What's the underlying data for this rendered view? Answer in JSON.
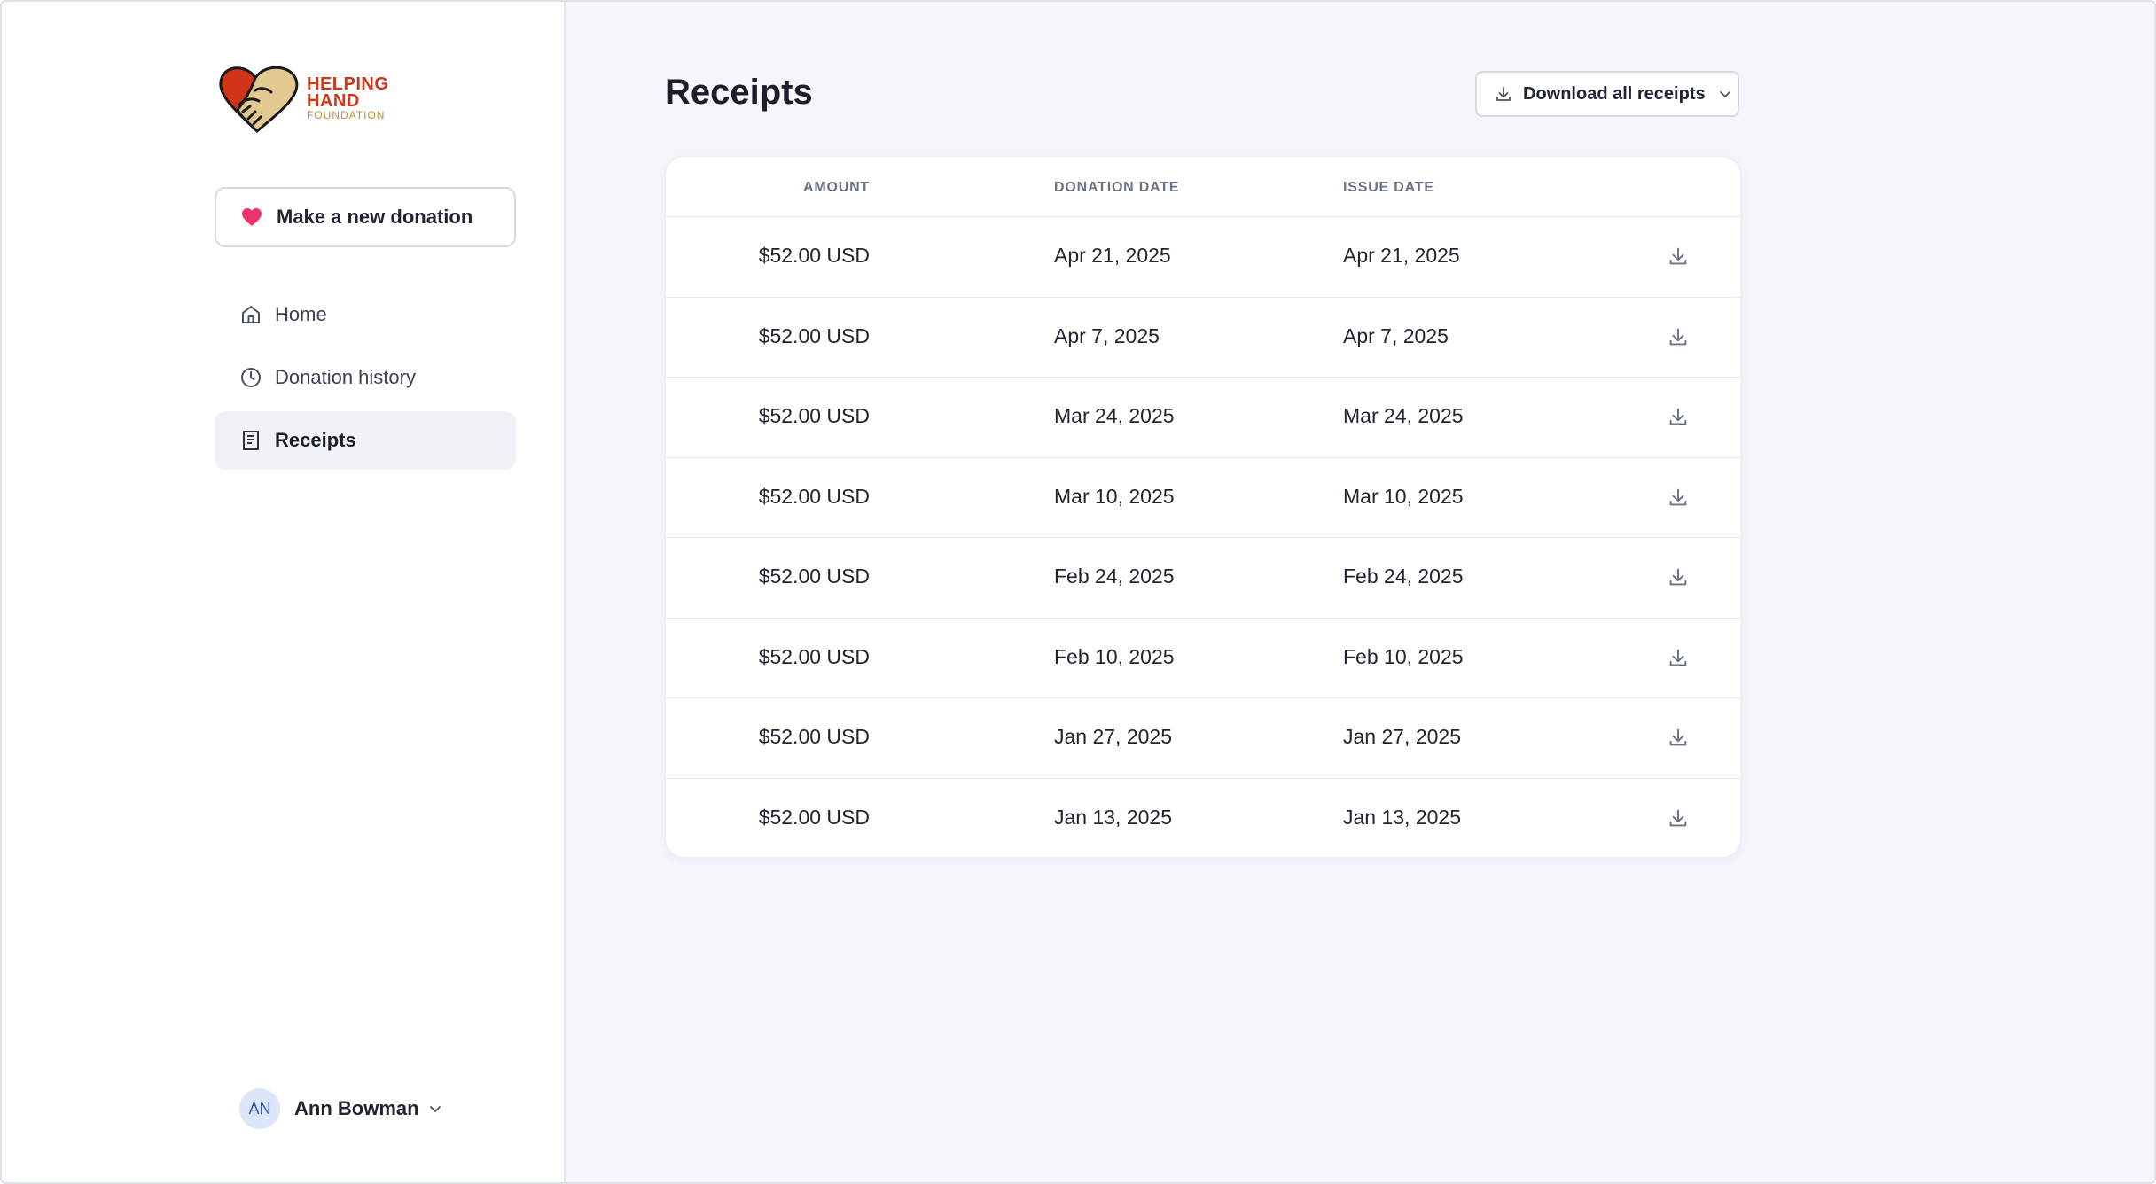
{
  "brand": {
    "line1": "HELPING",
    "line2": "HAND",
    "line3": "FOUNDATION",
    "colors": {
      "red": "#d2341a",
      "tan": "#e2c98f",
      "gold": "#c28b3c"
    }
  },
  "sidebar": {
    "donate_button": {
      "label": "Make a new donation",
      "icon": "heart-icon",
      "icon_color": "#f0336d"
    },
    "nav": [
      {
        "label": "Home",
        "icon": "home-icon",
        "active": false
      },
      {
        "label": "Donation history",
        "icon": "clock-icon",
        "active": false
      },
      {
        "label": "Receipts",
        "icon": "receipt-icon",
        "active": true
      }
    ],
    "user": {
      "initials": "AN",
      "name": "Ann Bowman"
    }
  },
  "main": {
    "title": "Receipts",
    "download_all_label": "Download all receipts",
    "table": {
      "headers": {
        "amount": "AMOUNT",
        "donation_date": "DONATION DATE",
        "issue_date": "ISSUE DATE"
      },
      "rows": [
        {
          "amount": "$52.00 USD",
          "donation_date": "Apr 21, 2025",
          "issue_date": "Apr 21, 2025"
        },
        {
          "amount": "$52.00 USD",
          "donation_date": "Apr 7, 2025",
          "issue_date": "Apr 7, 2025"
        },
        {
          "amount": "$52.00 USD",
          "donation_date": "Mar 24, 2025",
          "issue_date": "Mar 24, 2025"
        },
        {
          "amount": "$52.00 USD",
          "donation_date": "Mar 10, 2025",
          "issue_date": "Mar 10, 2025"
        },
        {
          "amount": "$52.00 USD",
          "donation_date": "Feb 24, 2025",
          "issue_date": "Feb 24, 2025"
        },
        {
          "amount": "$52.00 USD",
          "donation_date": "Feb 10, 2025",
          "issue_date": "Feb 10, 2025"
        },
        {
          "amount": "$52.00 USD",
          "donation_date": "Jan 27, 2025",
          "issue_date": "Jan 27, 2025"
        },
        {
          "amount": "$52.00 USD",
          "donation_date": "Jan 13, 2025",
          "issue_date": "Jan 13, 2025"
        }
      ]
    }
  }
}
